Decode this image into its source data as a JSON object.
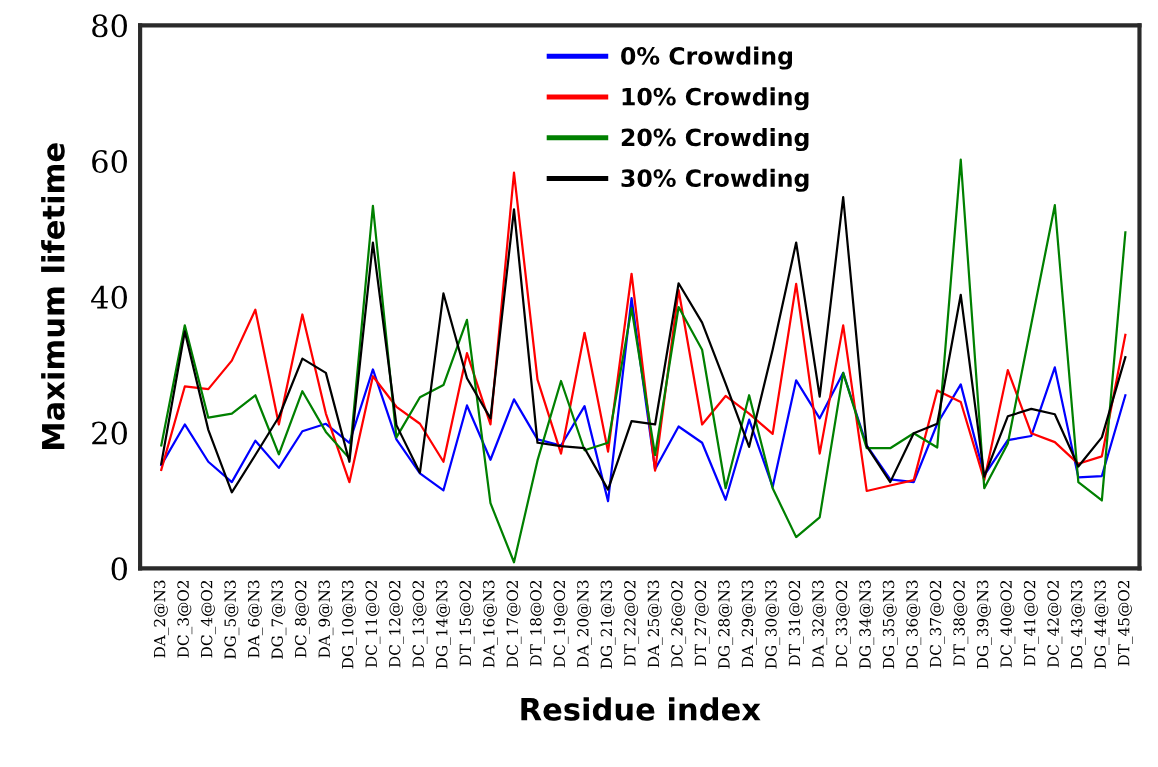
{
  "chart_data": {
    "type": "line",
    "xlabel": "Residue index",
    "ylabel": "Maximum lifetime",
    "categories": [
      "DA_2@N3",
      "DC_3@O2",
      "DC_4@O2",
      "DG_5@N3",
      "DA_6@N3",
      "DG_7@N3",
      "DC_8@O2",
      "DA_9@N3",
      "DG_10@N3",
      "DC_11@O2",
      "DC_12@O2",
      "DC_13@O2",
      "DG_14@N3",
      "DT_15@O2",
      "DA_16@N3",
      "DC_17@O2",
      "DT_18@O2",
      "DC_19@O2",
      "DA_20@N3",
      "DG_21@N3",
      "DT_22@O2",
      "DA_25@N3",
      "DC_26@O2",
      "DT_27@O2",
      "DG_28@N3",
      "DA_29@N3",
      "DG_30@N3",
      "DT_31@O2",
      "DA_32@N3",
      "DC_33@O2",
      "DG_34@N3",
      "DG_35@N3",
      "DG_36@N3",
      "DC_37@O2",
      "DT_38@O2",
      "DG_39@N3",
      "DC_40@O2",
      "DT_41@O2",
      "DC_42@O2",
      "DG_43@N3",
      "DG_44@N3",
      "DT_45@O2"
    ],
    "series": [
      {
        "name": "0% Crowding",
        "color": "#0000ff",
        "values": [
          15.2,
          21.2,
          15.7,
          12.7,
          18.8,
          14.8,
          20.2,
          21.3,
          18.5,
          29.3,
          19.0,
          14.0,
          11.5,
          24.0,
          16.0,
          24.9,
          19.0,
          18.1,
          23.9,
          9.9,
          39.8,
          14.6,
          20.9,
          18.5,
          10.1,
          21.9,
          12.0,
          27.7,
          22.1,
          28.8,
          18.1,
          13.1,
          12.7,
          21.3,
          27.1,
          13.7,
          18.9,
          19.5,
          29.6,
          13.4,
          13.6,
          25.5
        ]
      },
      {
        "name": "10% Crowding",
        "color": "#ff0000",
        "values": [
          14.5,
          26.8,
          26.4,
          30.6,
          38.1,
          21.2,
          37.4,
          22.8,
          12.7,
          28.3,
          23.8,
          21.3,
          15.7,
          31.7,
          21.2,
          58.3,
          27.8,
          16.9,
          34.7,
          17.2,
          43.4,
          14.4,
          41.0,
          21.2,
          25.4,
          22.8,
          19.8,
          41.9,
          16.9,
          35.8,
          11.4,
          12.2,
          13.0,
          26.2,
          24.5,
          13.0,
          29.2,
          19.9,
          18.6,
          15.4,
          16.5,
          34.4
        ]
      },
      {
        "name": "20% Crowding",
        "color": "#008000",
        "values": [
          18.1,
          35.8,
          22.2,
          22.8,
          25.5,
          16.8,
          26.1,
          20.1,
          16.2,
          53.4,
          19.3,
          25.2,
          27.0,
          36.6,
          9.6,
          0.9,
          15.9,
          27.6,
          17.4,
          18.5,
          38.3,
          16.7,
          38.5,
          32.2,
          11.8,
          25.5,
          11.8,
          4.6,
          7.5,
          28.8,
          17.7,
          17.7,
          19.9,
          17.8,
          60.2,
          11.8,
          18.4,
          36.0,
          53.5,
          12.7,
          10.0,
          49.5
        ]
      },
      {
        "name": "30% Crowding",
        "color": "#000000",
        "values": [
          15.4,
          34.9,
          20.4,
          11.2,
          16.7,
          22.3,
          30.9,
          28.8,
          15.7,
          48.0,
          21.1,
          14.1,
          40.5,
          28.0,
          22.1,
          52.9,
          18.5,
          18.0,
          17.7,
          11.6,
          21.7,
          21.2,
          42.0,
          36.2,
          27.2,
          17.9,
          32.2,
          48.0,
          25.3,
          54.7,
          18.0,
          12.7,
          19.9,
          21.3,
          40.3,
          13.5,
          22.4,
          23.5,
          22.7,
          15.0,
          19.3,
          31.1
        ]
      }
    ],
    "ylim": [
      0,
      80
    ],
    "yticks": [
      0,
      20,
      40,
      60,
      80
    ],
    "grid": false,
    "legend": "top"
  }
}
